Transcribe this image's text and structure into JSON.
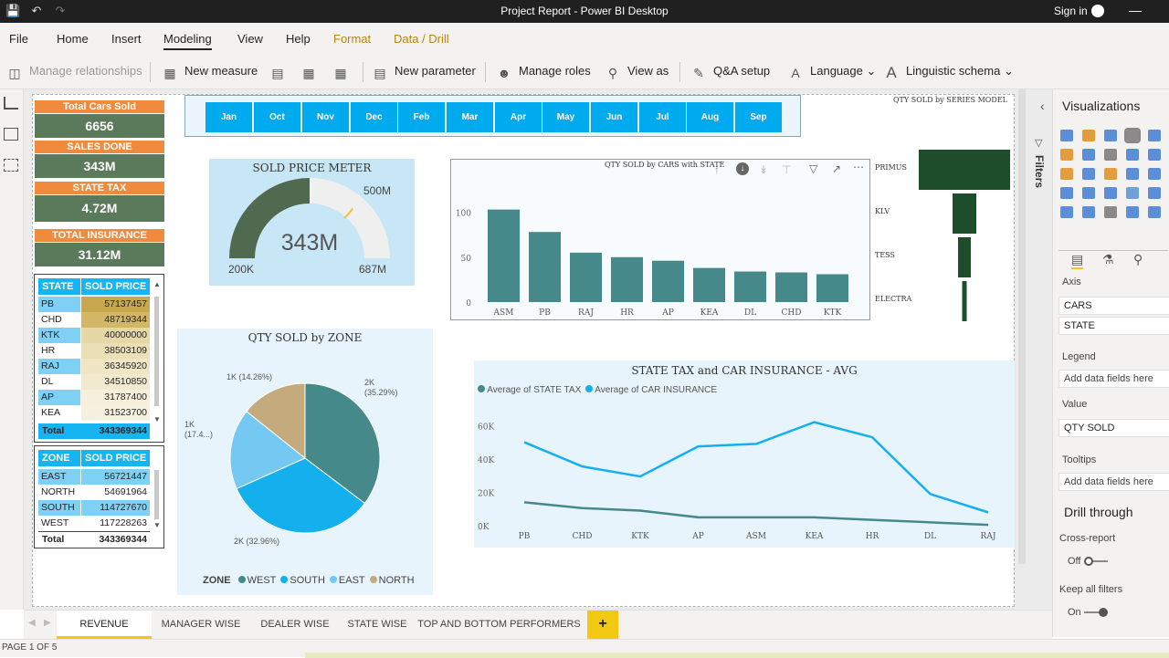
{
  "window": {
    "title": "Project Report - Power BI Desktop",
    "sign_in": "Sign in"
  },
  "menu": [
    "File",
    "Home",
    "Insert",
    "Modeling",
    "View",
    "Help",
    "Format",
    "Data / Drill"
  ],
  "toolbar": {
    "manage_relationships": "Manage relationships",
    "new_measure": "New measure",
    "new_parameter": "New parameter",
    "manage_roles": "Manage roles",
    "view_as": "View as",
    "qa_setup": "Q&A setup",
    "language": "Language",
    "linguistic_schema": "Linguistic schema"
  },
  "cards": [
    {
      "label": "Total Cars Sold",
      "value": "6656"
    },
    {
      "label": "SALES DONE",
      "value": "343M"
    },
    {
      "label": "STATE TAX",
      "value": "4.72M"
    },
    {
      "label": "TOTAL INSURANCE",
      "value": "31.12M"
    }
  ],
  "months": [
    "Jan",
    "Oct",
    "Nov",
    "Dec",
    "Feb",
    "Mar",
    "Apr",
    "May",
    "Jun",
    "Jul",
    "Aug",
    "Sep"
  ],
  "state_table": {
    "headers": [
      "STATE",
      "SOLD PRICE"
    ],
    "rows": [
      {
        "state": "PB",
        "value": "57137457",
        "shade": "#c8a84e"
      },
      {
        "state": "CHD",
        "value": "48719344",
        "shade": "#d2b766"
      },
      {
        "state": "KTK",
        "value": "40000000",
        "shade": "#e6d7a6"
      },
      {
        "state": "HR",
        "value": "38503109",
        "shade": "#ebdfb6"
      },
      {
        "state": "RAJ",
        "value": "36345920",
        "shade": "#efe6c6"
      },
      {
        "state": "DL",
        "value": "34510850",
        "shade": "#f2ead0"
      },
      {
        "state": "AP",
        "value": "31787400",
        "shade": "#f5efdb"
      },
      {
        "state": "KEA",
        "value": "31523700",
        "shade": "#f6f0de"
      }
    ],
    "total_label": "Total",
    "total_value": "343369344"
  },
  "zone_table": {
    "headers": [
      "ZONE",
      "SOLD PRICE"
    ],
    "rows": [
      {
        "zone": "EAST",
        "value": "56721447"
      },
      {
        "zone": "NORTH",
        "value": "54691964"
      },
      {
        "zone": "SOUTH",
        "value": "114727670"
      },
      {
        "zone": "WEST",
        "value": "117228263"
      }
    ],
    "total_label": "Total",
    "total_value": "343369344"
  },
  "gauge": {
    "title": "SOLD PRICE METER",
    "value": "343M",
    "min": "200K",
    "max": "687M",
    "target": "500M",
    "fraction": 0.5
  },
  "pie": {
    "title": "QTY SOLD by ZONE",
    "legend_title": "ZONE",
    "slices": [
      {
        "name": "WEST",
        "value": 35.29,
        "color": "#45898a",
        "label": "2K\n(35.29%)"
      },
      {
        "name": "SOUTH",
        "value": 32.96,
        "color": "#14b0ee",
        "label": "2K (32.96%)"
      },
      {
        "name": "EAST",
        "value": 17.4,
        "color": "#74c8f2",
        "label": "1K\n(17.4...)"
      },
      {
        "name": "NORTH",
        "value": 14.26,
        "color": "#c4ab7e",
        "label": "1K (14.26%)"
      }
    ]
  },
  "chart_data": [
    {
      "type": "bar",
      "title": "QTY SOLD by CARS with STATE",
      "categories": [
        "ASM",
        "PB",
        "RAJ",
        "HR",
        "AP",
        "KEA",
        "DL",
        "CHD",
        "KTK"
      ],
      "values": [
        103,
        78,
        55,
        50,
        46,
        38,
        34,
        33,
        31
      ],
      "ylim": [
        0,
        130
      ],
      "yticks": [
        0,
        50,
        100
      ],
      "color": "#45898a"
    },
    {
      "type": "bar",
      "title": "QTY SOLD by SERIES MODEL",
      "categories": [
        "PRIMUS",
        "KLV",
        "TESS",
        "ELECTRA"
      ],
      "values": [
        100,
        26,
        14,
        5
      ],
      "orientation": "funnel",
      "color": "#1e4d2b"
    },
    {
      "type": "line",
      "title": "STATE TAX and CAR INSURANCE - AVG",
      "x": [
        "PB",
        "CHD",
        "KTK",
        "AP",
        "ASM",
        "KEA",
        "HR",
        "DL",
        "RAJ"
      ],
      "series": [
        {
          "name": "Average of STATE TAX",
          "values": [
            14000,
            10500,
            9000,
            5000,
            5000,
            5000,
            3500,
            2000,
            500
          ],
          "color": "#45898a"
        },
        {
          "name": "Average of CAR INSURANCE",
          "values": [
            50000,
            35500,
            29500,
            47500,
            49000,
            62000,
            53000,
            19000,
            8000
          ],
          "color": "#14b0ee"
        }
      ],
      "ylim": [
        0,
        70000
      ],
      "yticks": [
        "0K",
        "20K",
        "40K",
        "60K"
      ]
    }
  ],
  "viz_pane": {
    "title": "Visualizations",
    "filters": "Filters",
    "axis_label": "Axis",
    "axis_fields": [
      "CARS",
      "STATE"
    ],
    "legend_label": "Legend",
    "legend_placeholder": "Add data fields here",
    "value_label": "Value",
    "value_field": "QTY SOLD",
    "tooltips_label": "Tooltips",
    "tooltips_placeholder": "Add data fields here",
    "drill_title": "Drill through",
    "cross_report": "Cross-report",
    "off": "Off",
    "keep_filters": "Keep all filters",
    "on": "On"
  },
  "tabs": [
    "REVENUE",
    "MANAGER WISE",
    "DEALER WISE",
    "STATE WISE",
    "TOP AND BOTTOM PERFORMERS",
    "+"
  ],
  "status": {
    "page": "PAGE 1 OF 5"
  }
}
